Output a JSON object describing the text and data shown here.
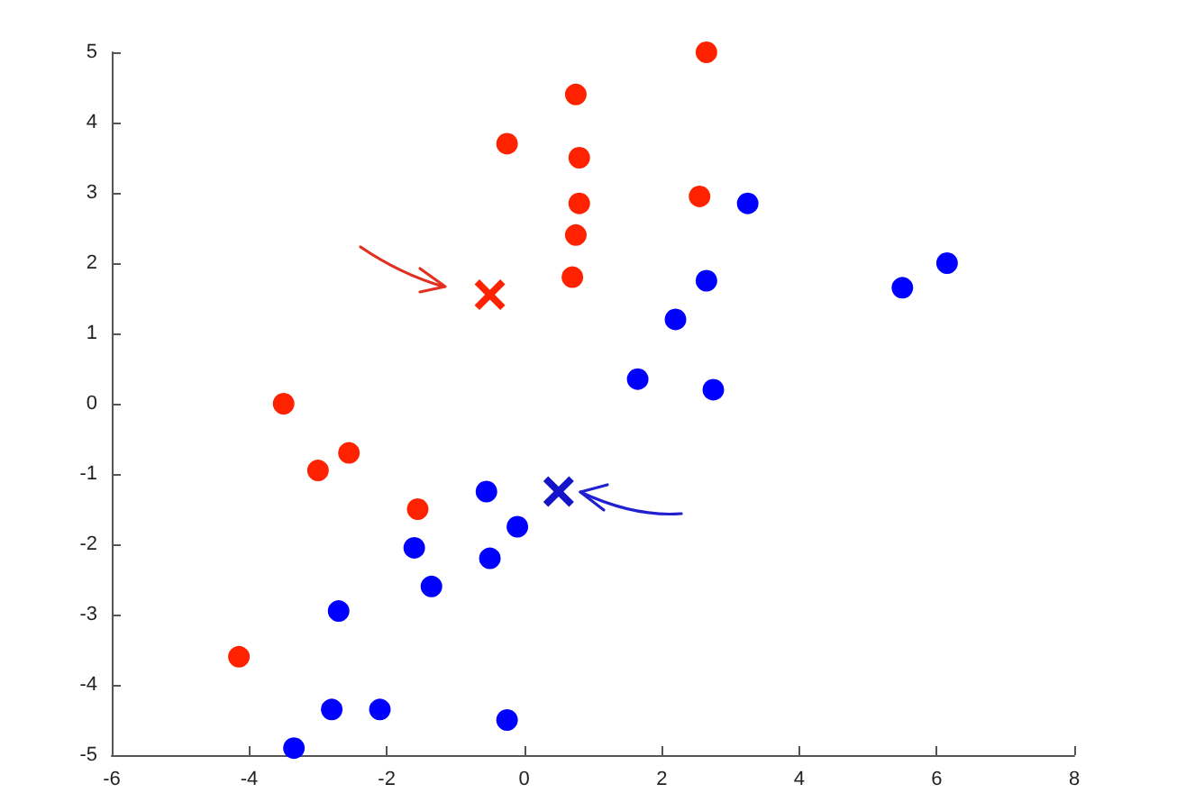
{
  "chart_data": {
    "type": "scatter",
    "xlim": [
      -6,
      8
    ],
    "ylim": [
      -5,
      5
    ],
    "xticks": [
      -6,
      -4,
      -2,
      0,
      2,
      4,
      6,
      8
    ],
    "yticks": [
      -5,
      -4,
      -3,
      -2,
      -1,
      0,
      1,
      2,
      3,
      4,
      5
    ],
    "series": [
      {
        "color": "#ff2200",
        "marker": "circle",
        "x": [
          -4.15,
          -3.5,
          -3.0,
          -2.55,
          -1.55,
          -0.25,
          0.75,
          0.8,
          0.8,
          0.75,
          0.7,
          2.65,
          2.55
        ],
        "values": [
          -3.6,
          0,
          -0.95,
          -0.7,
          -1.5,
          3.7,
          4.4,
          3.5,
          2.85,
          2.4,
          1.8,
          5.0,
          2.95
        ]
      },
      {
        "color": "#0000ff",
        "marker": "circle",
        "x": [
          3.25,
          2.65,
          2.2,
          1.65,
          2.75,
          5.5,
          6.15,
          -0.55,
          -0.1,
          -1.6,
          -0.5,
          -1.35,
          -2.7,
          -2.8,
          -2.1,
          -0.25,
          -3.35
        ],
        "values": [
          2.85,
          1.75,
          1.2,
          0.35,
          0.2,
          1.65,
          2.0,
          -1.25,
          -1.75,
          -2.05,
          -2.2,
          -2.6,
          -2.95,
          -4.35,
          -4.35,
          -4.5,
          -4.9
        ]
      },
      {
        "color": "#ff2200",
        "marker": "cross",
        "x": [
          -0.5
        ],
        "values": [
          1.55
        ]
      },
      {
        "color": "#1414c8",
        "marker": "cross",
        "x": [
          0.5
        ],
        "values": [
          -1.25
        ]
      }
    ]
  }
}
